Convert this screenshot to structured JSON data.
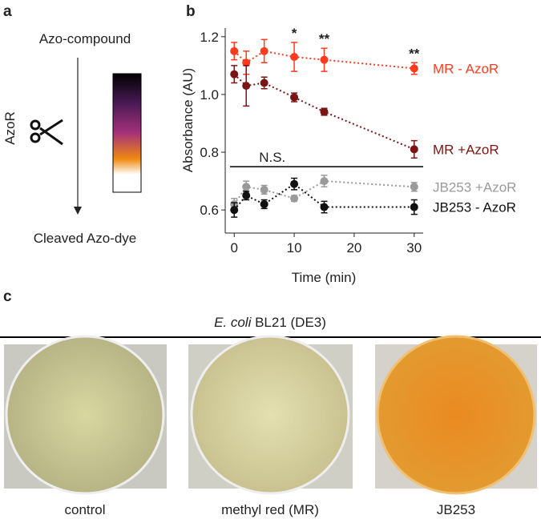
{
  "panel_a": {
    "label": "a",
    "top": "Azo-compound",
    "side": "AzoR",
    "bottom": "Cleaved Azo-dye"
  },
  "chart_data": {
    "type": "line",
    "label": "b",
    "y_label": "Absorbance (AU)",
    "x_label": "Time (min)",
    "x": [
      0,
      2,
      5,
      10,
      15,
      30
    ],
    "xlim": [
      -1.5,
      31.5
    ],
    "xticks": [
      0,
      10,
      20,
      30
    ],
    "ylim": [
      0.52,
      1.23
    ],
    "yticks": [
      0.6,
      0.8,
      {
        "value": 1,
        "label": "1.0"
      },
      1.2
    ],
    "series": [
      {
        "name": "MR - AzoR",
        "color": "#ff3b1f",
        "values": [
          1.15,
          1.11,
          1.15,
          1.13,
          1.12,
          1.09
        ],
        "errors": [
          0.03,
          0.04,
          0.04,
          0.05,
          0.04,
          0.02
        ]
      },
      {
        "name": "MR +AzoR",
        "color": "#7a1515",
        "values": [
          1.07,
          1.03,
          1.04,
          0.99,
          0.94,
          0.81
        ],
        "errors": [
          0.03,
          0.07,
          0.02,
          0.015,
          0.012,
          0.03
        ]
      },
      {
        "name": "JB253 +AzoR",
        "color": "#9a9a9a",
        "values": [
          0.62,
          0.68,
          0.67,
          0.64,
          0.7,
          0.68
        ],
        "errors": [
          0.02,
          0.02,
          0.015,
          0.01,
          0.02,
          0.015
        ]
      },
      {
        "name": "JB253 - AzoR",
        "color": "#111111",
        "values": [
          0.6,
          0.65,
          0.62,
          0.69,
          0.61,
          0.61
        ],
        "errors": [
          0.025,
          0.015,
          0.015,
          0.02,
          0.02,
          0.025
        ]
      }
    ],
    "annotations": [
      {
        "text": "*",
        "x": 10
      },
      {
        "text": "**",
        "x": 15
      },
      {
        "text": "**",
        "x": 30
      }
    ],
    "ns": {
      "text": "N.S.",
      "y": 0.75
    }
  },
  "panel_c": {
    "label": "c",
    "title_italic": "E. coli",
    "title_rest": "BL21 (DE3)",
    "captions": [
      "control",
      "methyl red (MR)",
      "JB253"
    ]
  }
}
